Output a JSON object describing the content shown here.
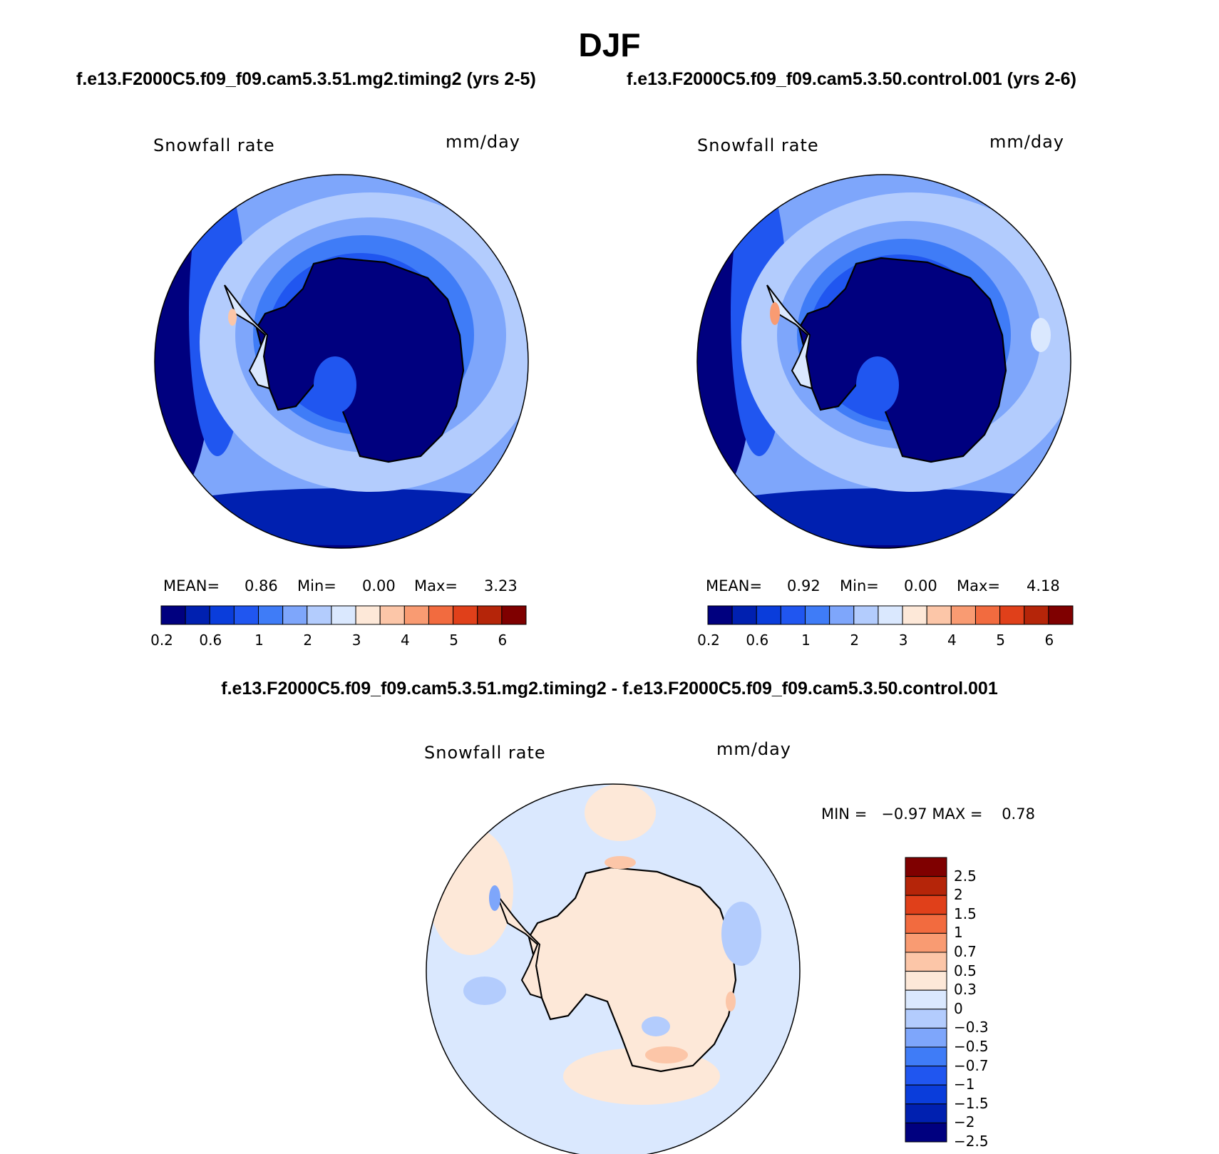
{
  "title": "DJF",
  "panels": [
    {
      "subtitle": "f.e13.F2000C5.f09_f09.cam5.3.51.mg2.timing2 (yrs 2-5)",
      "variable": "Snowfall rate",
      "units": "mm/day",
      "stats": {
        "mean_label": "MEAN=",
        "mean": "0.86",
        "min_label": "Min=",
        "min": "0.00",
        "max_label": "Max=",
        "max": "3.23"
      }
    },
    {
      "subtitle": "f.e13.F2000C5.f09_f09.cam5.3.50.control.001 (yrs 2-6)",
      "variable": "Snowfall rate",
      "units": "mm/day",
      "stats": {
        "mean_label": "MEAN=",
        "mean": "0.92",
        "min_label": "Min=",
        "min": "0.00",
        "max_label": "Max=",
        "max": "4.18"
      }
    }
  ],
  "diff": {
    "title": "f.e13.F2000C5.f09_f09.cam5.3.51.mg2.timing2 - f.e13.F2000C5.f09_f09.cam5.3.50.control.001",
    "variable": "Snowfall rate",
    "units": "mm/day",
    "minmax": "MIN =   −0.97 MAX =    0.78"
  },
  "colorbar_abs": {
    "colors": [
      "#00007f",
      "#0020b0",
      "#0a3ddb",
      "#2056f0",
      "#3f7cf7",
      "#7ea6fb",
      "#b3ccfd",
      "#dae8fe",
      "#fde8d8",
      "#fcc6a8",
      "#f99b72",
      "#f26b3f",
      "#e0401a",
      "#b52509",
      "#7f0000"
    ],
    "tick_labels": [
      "0.2",
      "0.6",
      "1",
      "2",
      "3",
      "4",
      "5",
      "6"
    ]
  },
  "colorbar_diff": {
    "colors": [
      "#7f0000",
      "#b52509",
      "#e0401a",
      "#f26b3f",
      "#f99b72",
      "#fcc6a8",
      "#fde8d8",
      "#dae8fe",
      "#b3ccfd",
      "#7ea6fb",
      "#3f7cf7",
      "#2056f0",
      "#0a3ddb",
      "#0020b0",
      "#00007f"
    ],
    "tick_labels": [
      "2.5",
      "2",
      "1.5",
      "1",
      "0.7",
      "0.5",
      "0.3",
      "0",
      "−0.3",
      "−0.5",
      "−0.7",
      "−1",
      "−1.5",
      "−2",
      "−2.5"
    ]
  },
  "map_colors": {
    "outer_dark": "#00007f",
    "ring_2": "#0020b0",
    "ring_3": "#2056f0",
    "ring_4": "#3f7cf7",
    "ring_5": "#7ea6fb",
    "ring_6": "#b3ccfd",
    "pale": "#dae8fe",
    "warm_1": "#fde8d8",
    "warm_2": "#fcc6a8",
    "warm_3": "#f99b72",
    "coast": "#000000"
  }
}
